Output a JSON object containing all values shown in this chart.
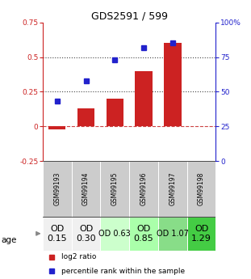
{
  "title": "GDS2591 / 599",
  "samples": [
    "GSM99193",
    "GSM99194",
    "GSM99195",
    "GSM99196",
    "GSM99197",
    "GSM99198"
  ],
  "log2_ratio": [
    -0.02,
    0.13,
    0.2,
    0.4,
    0.6,
    0.0
  ],
  "percentile_rank": [
    0.43,
    0.58,
    0.73,
    0.82,
    0.85,
    0.0
  ],
  "bar_color": "#cc2222",
  "dot_color": "#2222cc",
  "ylim_left": [
    -0.25,
    0.75
  ],
  "ylim_right": [
    0,
    100
  ],
  "hlines_y": [
    0.0,
    0.25,
    0.5
  ],
  "hline_styles": [
    "dashed",
    "dotted",
    "dotted"
  ],
  "hline_colors": [
    "#cc4444",
    "#444444",
    "#444444"
  ],
  "age_labels": [
    "OD\n0.15",
    "OD\n0.30",
    "OD 0.63",
    "OD\n0.85",
    "OD 1.07",
    "OD\n1.29"
  ],
  "age_colors": [
    "#f0f0f0",
    "#f0f0f0",
    "#ccffcc",
    "#aaffaa",
    "#88dd88",
    "#44cc44"
  ],
  "age_font_sizes": [
    8,
    8,
    7,
    8,
    7,
    8
  ],
  "legend_log2": "log2 ratio",
  "legend_pct": "percentile rank within the sample",
  "right_axis_color": "#2222cc",
  "left_axis_color": "#cc2222",
  "right_ticks": [
    0,
    25,
    50,
    75,
    100
  ],
  "right_tick_labels": [
    "0",
    "25",
    "50",
    "75",
    "100%"
  ],
  "left_ticks": [
    -0.25,
    0,
    0.25,
    0.5,
    0.75
  ],
  "left_tick_labels": [
    "-0.25",
    "0",
    "0.25",
    "0.5",
    "0.75"
  ]
}
